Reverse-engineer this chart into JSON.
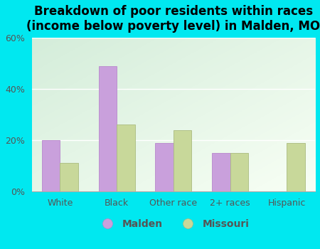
{
  "title": "Breakdown of poor residents within races\n(income below poverty level) in Malden, MO",
  "categories": [
    "White",
    "Black",
    "Other race",
    "2+ races",
    "Hispanic"
  ],
  "malden_values": [
    20,
    49,
    19,
    15,
    0
  ],
  "missouri_values": [
    11,
    26,
    24,
    15,
    19
  ],
  "malden_color": "#c9a0dc",
  "missouri_color": "#c8d89a",
  "bar_border_malden": "#b888cc",
  "bar_border_missouri": "#aabb80",
  "background_outer": "#00e8f0",
  "background_inner_tl": "#d4edda",
  "background_inner_br": "#f5fff5",
  "ylim": [
    0,
    60
  ],
  "yticks": [
    0,
    20,
    40,
    60
  ],
  "ytick_labels": [
    "0%",
    "20%",
    "40%",
    "60%"
  ],
  "title_fontsize": 12,
  "tick_fontsize": 9,
  "legend_fontsize": 10,
  "bar_width": 0.32
}
